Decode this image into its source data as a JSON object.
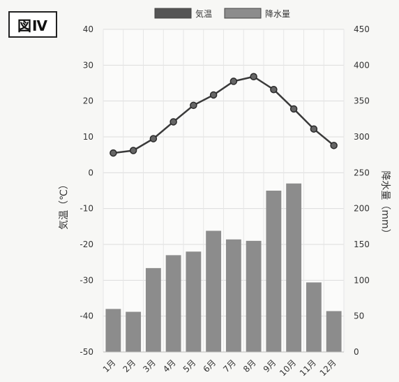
{
  "figure_label": "図Ⅳ",
  "chart_data": {
    "type": "bar+line",
    "title": "",
    "categories": [
      "1月",
      "2月",
      "3月",
      "4月",
      "5月",
      "6月",
      "7月",
      "8月",
      "9月",
      "10月",
      "11月",
      "12月"
    ],
    "series": [
      {
        "name": "気温",
        "type": "line",
        "axis": "left",
        "color": "#3a3a3a",
        "values": [
          5.5,
          6.2,
          9.5,
          14.2,
          18.8,
          21.7,
          25.5,
          26.8,
          23.2,
          17.8,
          12.2,
          7.6
        ]
      },
      {
        "name": "降水量",
        "type": "bar",
        "axis": "right",
        "color": "#8c8c8c",
        "values": [
          60,
          56,
          117,
          135,
          140,
          169,
          157,
          155,
          225,
          235,
          97,
          57
        ]
      }
    ],
    "y_left": {
      "label": "気温（℃）",
      "range": [
        -50,
        40
      ],
      "ticks": [
        "40",
        "30",
        "20",
        "10",
        "0",
        "-10",
        "-20",
        "-30",
        "-40",
        "-50"
      ]
    },
    "y_right": {
      "label": "降水量（mm）",
      "range": [
        0,
        450
      ],
      "ticks": [
        "450",
        "400",
        "350",
        "300",
        "250",
        "200",
        "150",
        "100",
        "50",
        "0"
      ]
    },
    "legend_position": "top-center",
    "grid": true
  }
}
